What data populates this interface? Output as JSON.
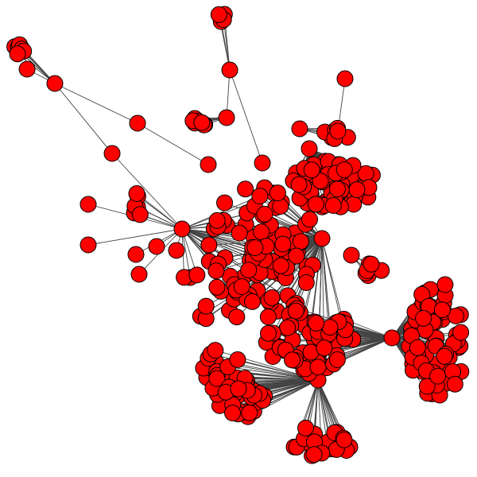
{
  "diagram": {
    "type": "network-graph",
    "node_fill": "#ff0000",
    "node_stroke": "#000000",
    "edge_color": "#444444",
    "labels": "none"
  }
}
